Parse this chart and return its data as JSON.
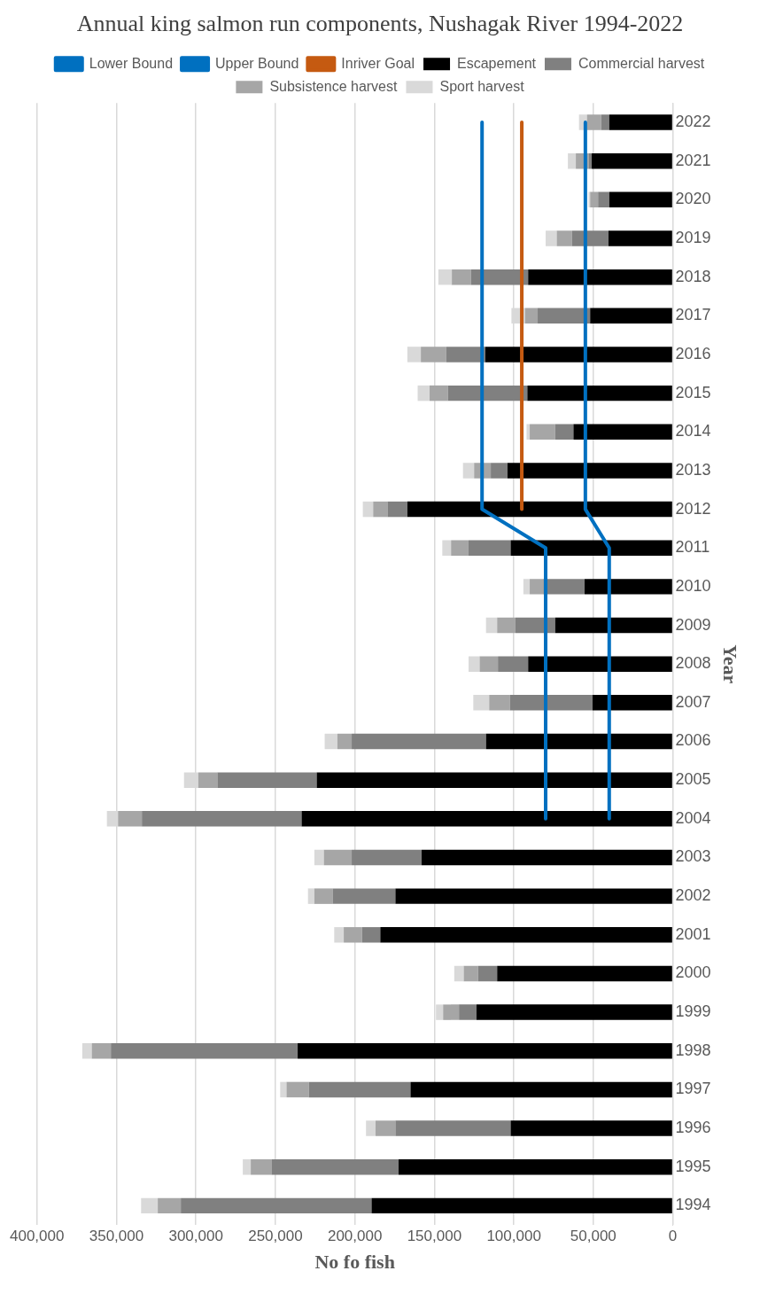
{
  "chart_data": {
    "type": "bar",
    "orientation": "horizontal",
    "stacked": true,
    "title": "Annual king salmon run components, Nushagak River 1994-2022",
    "xlabel": "No fo fish",
    "ylabel": "Year",
    "categories": [
      "2022",
      "2021",
      "2020",
      "2019",
      "2018",
      "2017",
      "2016",
      "2015",
      "2014",
      "2013",
      "2012",
      "2011",
      "2010",
      "2009",
      "2008",
      "2007",
      "2006",
      "2005",
      "2004",
      "2003",
      "2002",
      "2001",
      "2000",
      "1999",
      "1998",
      "1997",
      "1996",
      "1995",
      "1994"
    ],
    "series": [
      {
        "name": "Escapement",
        "color": "#000000",
        "values": [
          40000,
          51000,
          40000,
          40500,
          91000,
          52000,
          118000,
          91500,
          62500,
          104000,
          167000,
          102000,
          55500,
          74000,
          91000,
          50500,
          117500,
          224000,
          233500,
          158000,
          174500,
          184000,
          110500,
          123500,
          236000,
          165000,
          102000,
          172500,
          189500
        ]
      },
      {
        "name": "Commercial harvest",
        "color": "#808080",
        "values": [
          5000,
          2000,
          7000,
          23000,
          36000,
          33000,
          24500,
          50000,
          11500,
          10500,
          12500,
          26500,
          26000,
          25000,
          19000,
          52000,
          84500,
          62500,
          100500,
          44000,
          39500,
          11500,
          12000,
          11000,
          117500,
          64000,
          72500,
          80000,
          120000
        ]
      },
      {
        "name": "Subsistence harvest",
        "color": "#a6a6a6",
        "values": [
          9000,
          8000,
          5000,
          9500,
          12000,
          8000,
          16000,
          11500,
          16000,
          10500,
          9000,
          11000,
          8500,
          11500,
          11500,
          13000,
          9000,
          12000,
          15000,
          17500,
          11500,
          11500,
          9000,
          10000,
          12000,
          14000,
          12500,
          13000,
          14500
        ]
      },
      {
        "name": "Sport harvest",
        "color": "#d9d9d9",
        "values": [
          5000,
          5000,
          1000,
          7000,
          8500,
          8500,
          8500,
          7500,
          2000,
          7000,
          6500,
          5500,
          4000,
          7000,
          7000,
          10000,
          8000,
          9000,
          7000,
          6000,
          4000,
          6000,
          6000,
          4500,
          6000,
          4000,
          6000,
          5000,
          10500
        ]
      },
      {
        "name": "Lower Bound",
        "type": "line",
        "color": "#0070c0",
        "values": [
          55000,
          55000,
          55000,
          55000,
          55000,
          55000,
          55000,
          55000,
          55000,
          55000,
          55000,
          40000,
          40000,
          40000,
          40000,
          40000,
          40000,
          40000,
          40000,
          null,
          null,
          null,
          null,
          null,
          null,
          null,
          null,
          null,
          null
        ]
      },
      {
        "name": "Upper Bound",
        "type": "line",
        "color": "#0070c0",
        "values": [
          120000,
          120000,
          120000,
          120000,
          120000,
          120000,
          120000,
          120000,
          120000,
          120000,
          120000,
          80000,
          80000,
          80000,
          80000,
          80000,
          80000,
          80000,
          80000,
          null,
          null,
          null,
          null,
          null,
          null,
          null,
          null,
          null,
          null
        ]
      },
      {
        "name": "Inriver Goal",
        "type": "line",
        "color": "#c55a11",
        "values": [
          95000,
          95000,
          95000,
          95000,
          95000,
          95000,
          95000,
          95000,
          95000,
          95000,
          95000,
          null,
          null,
          null,
          null,
          null,
          null,
          null,
          null,
          null,
          null,
          null,
          null,
          null,
          null,
          null,
          null,
          null,
          null
        ]
      }
    ],
    "xlim": [
      400000,
      0
    ],
    "xticks": [
      {
        "value": 400000,
        "label": "400,000"
      },
      {
        "value": 350000,
        "label": "350,000"
      },
      {
        "value": 300000,
        "label": "300,000"
      },
      {
        "value": 250000,
        "label": "250,000"
      },
      {
        "value": 200000,
        "label": "200,000"
      },
      {
        "value": 150000,
        "label": "150,000"
      },
      {
        "value": 100000,
        "label": "100,000"
      },
      {
        "value": 50000,
        "label": "50,000"
      },
      0
    ],
    "grid": "x",
    "legend": "top",
    "marker": "none",
    "line_style": "solid"
  }
}
